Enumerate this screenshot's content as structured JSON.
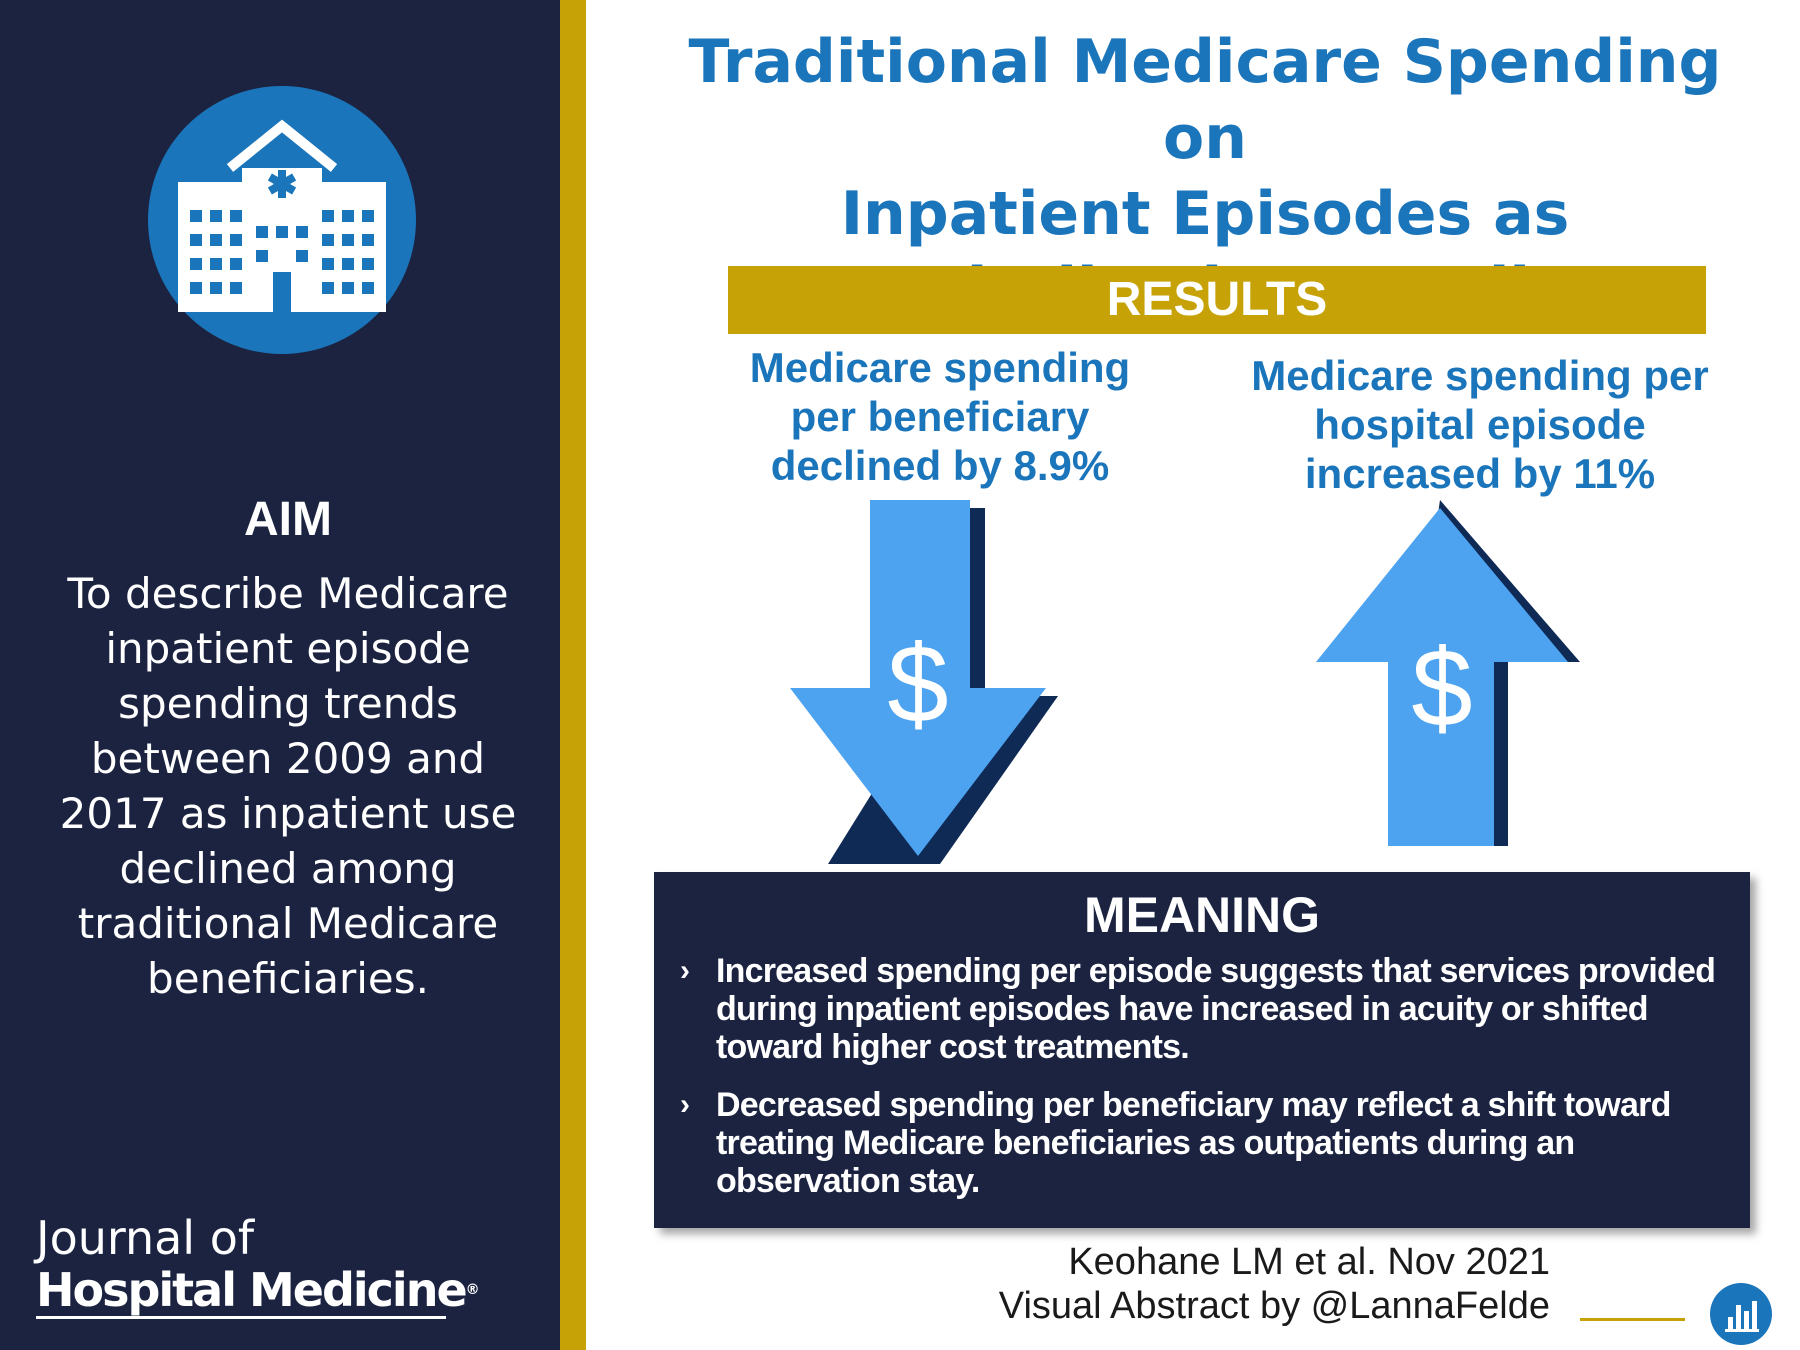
{
  "colors": {
    "navy": "#1b2340",
    "gold": "#c6a206",
    "blue": "#1b75bb",
    "arrow_light": "#4da3f0",
    "arrow_shadow": "#0f2a55"
  },
  "sidebar": {
    "icon": "hospital-icon",
    "aim_heading": "AIM",
    "aim_lines": [
      "To describe Medicare",
      "inpatient episode",
      "spending trends",
      "between 2009 and",
      "2017 as inpatient use",
      "declined among",
      "traditional Medicare",
      "beneficiaries."
    ],
    "journal": {
      "line1": "Journal of",
      "line2": "Hospital Medicine",
      "reg_mark": "®"
    }
  },
  "main": {
    "title_lines": [
      "Traditional Medicare Spending on",
      "Inpatient Episodes as",
      "Hospitalizations Decline"
    ],
    "results_label": "RESULTS",
    "results": [
      {
        "lines": [
          "Medicare spending",
          "per beneficiary",
          "declined by 8.9%"
        ],
        "direction": "down",
        "icon": "dollar-down-arrow-icon",
        "symbol": "$"
      },
      {
        "lines": [
          "Medicare spending per",
          "hospital episode",
          "increased by 11%"
        ],
        "direction": "up",
        "icon": "dollar-up-arrow-icon",
        "symbol": "$"
      }
    ],
    "meaning": {
      "heading": "MEANING",
      "bullet_symbol": "›",
      "items": [
        "Increased spending per episode suggests that services provided during inpatient episodes have increased in acuity or shifted toward higher cost treatments.",
        "Decreased spending per beneficiary may reflect a shift toward treating Medicare beneficiaries as outpatients during an observation stay."
      ]
    },
    "citation": {
      "line1": "Keohane LM et al. Nov 2021",
      "line2": "Visual Abstract by @LannaFelde"
    },
    "badge_icon": "bar-chart-icon"
  }
}
